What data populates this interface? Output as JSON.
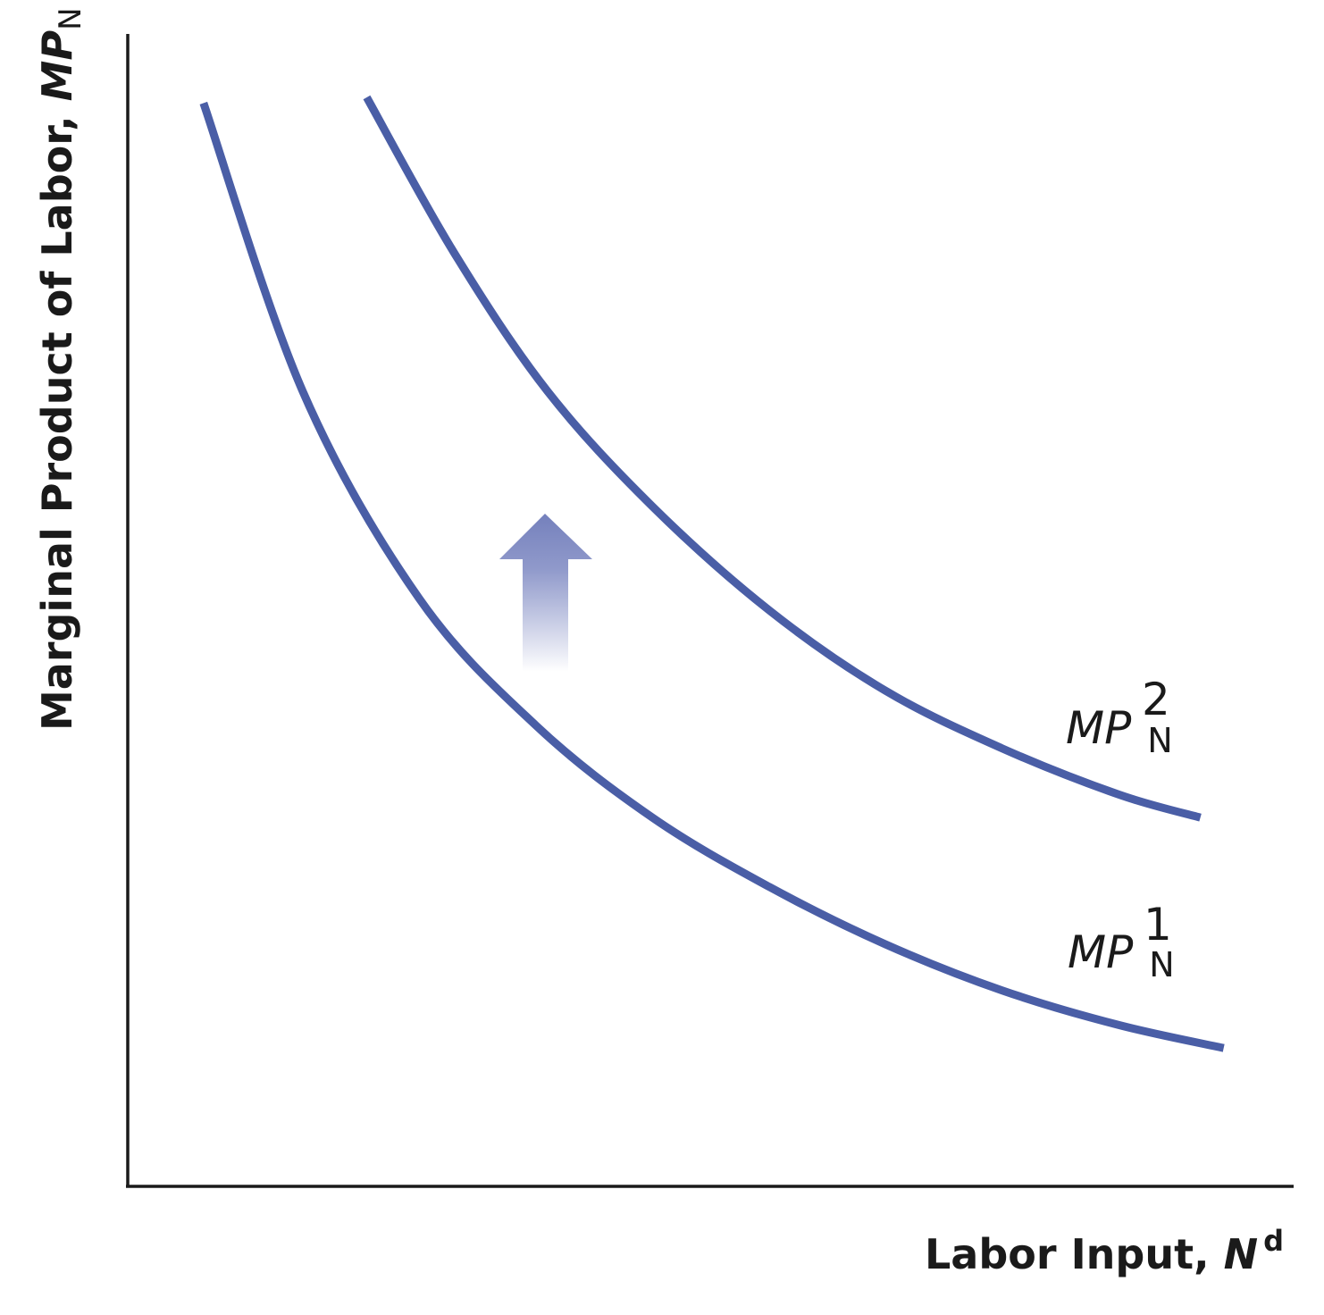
{
  "chart_data": {
    "type": "line",
    "title": "",
    "xlabel": {
      "main": "Labor Input, ",
      "var": "N",
      "sup": "d"
    },
    "ylabel": {
      "main": "Marginal Product of Labor, ",
      "var": "MP",
      "sub": "N"
    },
    "grid": false,
    "legend": "none",
    "xlim": [
      0,
      10
    ],
    "ylim": [
      0,
      10
    ],
    "series": [
      {
        "label": {
          "base": "MP",
          "sub": "N",
          "sup": "1"
        },
        "x": [
          0.65,
          1.5,
          2.5,
          3.5,
          4.5,
          5.5,
          6.5,
          7.5,
          8.5,
          9.4
        ],
        "y": [
          9.4,
          6.9,
          5.1,
          4.0,
          3.2,
          2.6,
          2.1,
          1.7,
          1.4,
          1.2
        ]
      },
      {
        "label": {
          "base": "MP",
          "sub": "N",
          "sup": "2"
        },
        "x": [
          2.05,
          2.8,
          3.6,
          4.5,
          5.5,
          6.5,
          7.5,
          8.5,
          9.2
        ],
        "y": [
          9.45,
          8.1,
          6.9,
          5.9,
          5.0,
          4.3,
          3.8,
          3.4,
          3.2
        ]
      }
    ],
    "annotations": [
      {
        "type": "arrow",
        "direction": "up",
        "meaning": "upward shift from MPN1 to MPN2"
      }
    ],
    "colors": {
      "curve": "#4a5ea6",
      "axis": "#1a1a1a",
      "arrow": "#7480bc"
    }
  }
}
